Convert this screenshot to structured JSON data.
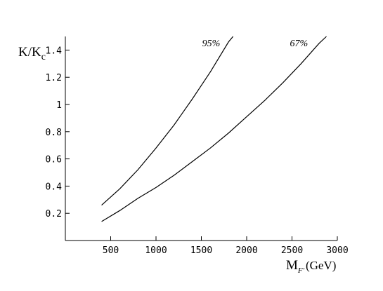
{
  "chart_data": {
    "type": "line",
    "title": "",
    "xlabel": {
      "main": "M",
      "sub": "F'",
      "unit": "(GeV)"
    },
    "ylabel": {
      "main": "K/K",
      "sub": "c"
    },
    "xlim": [
      0,
      3000
    ],
    "ylim": [
      0.0,
      1.5
    ],
    "xticks": [
      500,
      1000,
      1500,
      2000,
      2500,
      3000
    ],
    "yticks": [
      0.2,
      0.4,
      0.6,
      0.8,
      1.0,
      1.2,
      1.4
    ],
    "xtick_labels": [
      "500",
      "1000",
      "1500",
      "2000",
      "2500",
      "3000"
    ],
    "ytick_labels": [
      "0.2",
      "0.4",
      "0.6",
      "0.8",
      "1",
      "1.2",
      "1.4"
    ],
    "grid": false,
    "series": [
      {
        "name": "95%",
        "x": [
          400,
          600,
          800,
          1000,
          1200,
          1400,
          1600,
          1800,
          1850
        ],
        "y": [
          0.26,
          0.38,
          0.52,
          0.68,
          0.85,
          1.04,
          1.24,
          1.46,
          1.51
        ]
      },
      {
        "name": "67%",
        "x": [
          400,
          600,
          800,
          1000,
          1200,
          1400,
          1600,
          1800,
          2000,
          2200,
          2400,
          2600,
          2800,
          2880
        ],
        "y": [
          0.14,
          0.22,
          0.31,
          0.39,
          0.48,
          0.58,
          0.68,
          0.79,
          0.91,
          1.03,
          1.16,
          1.3,
          1.45,
          1.51
        ]
      }
    ],
    "annotations": [
      {
        "text": "95%",
        "series": 0
      },
      {
        "text": "67%",
        "series": 1
      }
    ]
  }
}
